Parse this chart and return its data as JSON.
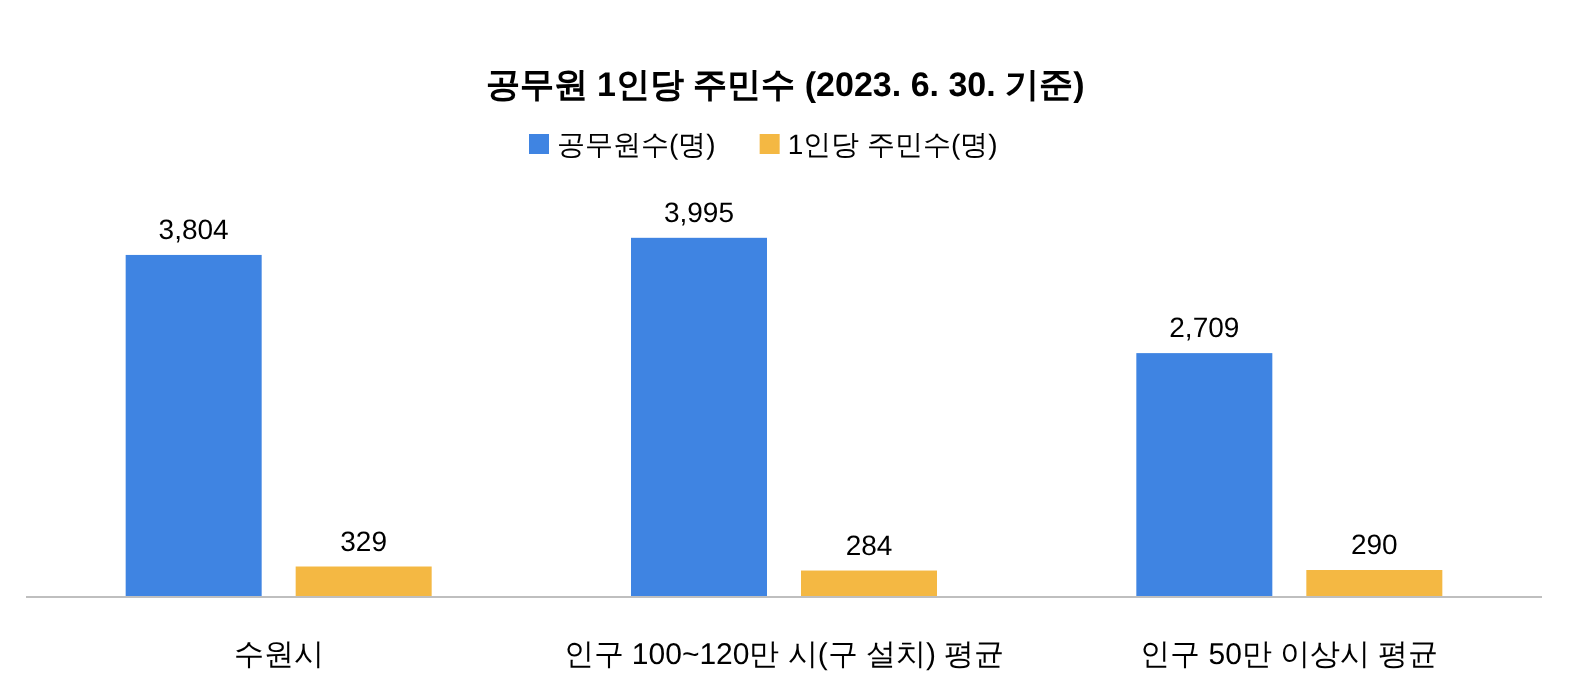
{
  "chart_data": {
    "type": "bar",
    "title": "공무원 1인당 주민수 (2023. 6. 30. 기준)",
    "categories": [
      "수원시",
      "인구 100~120만 시(구 설치) 평균",
      "인구 50만 이상시 평균"
    ],
    "legend": "top",
    "series": [
      {
        "name": "공무원수(명)",
        "color": "#3f84e2",
        "values": [
          3804,
          3995,
          2709
        ],
        "value_labels": [
          "3,804",
          "3,995",
          "2,709"
        ]
      },
      {
        "name": "1인당 주민수(명)",
        "color": "#f4b843",
        "values": [
          329,
          284,
          290
        ],
        "value_labels": [
          "329",
          "284",
          "290"
        ]
      }
    ]
  }
}
